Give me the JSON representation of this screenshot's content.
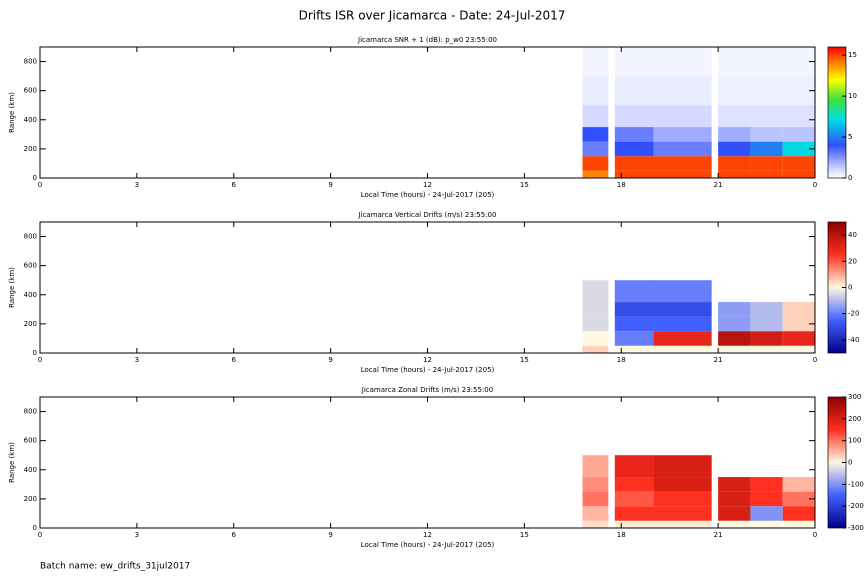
{
  "title": "Drifts ISR over Jicamarca - Date: 24-Jul-2017",
  "footer": "Batch name: ew_drifts_31jul2017",
  "chart_data": [
    {
      "type": "heatmap",
      "title": "Jicamarca SNR + 1 (dB): p_w0 23:55:00",
      "xlabel": "Local Time (hours) - 24-Jul-2017 (205)",
      "ylabel": "Range (km)",
      "xlim": [
        0,
        24
      ],
      "xticks": [
        0,
        3,
        6,
        9,
        12,
        15,
        18,
        21,
        {
          "value": 24,
          "label": "0"
        }
      ],
      "ylim": [
        0,
        900
      ],
      "yticks": [
        0,
        200,
        400,
        600,
        800
      ],
      "colorscale": "rainbow",
      "clim": [
        0,
        16
      ],
      "cticks": [
        0,
        5,
        10,
        15
      ],
      "x": [
        16.8,
        17.6,
        17.8,
        19,
        20.8,
        21.0,
        22,
        23,
        24
      ],
      "y": [
        0,
        50,
        150,
        250,
        350,
        500,
        700,
        900
      ],
      "z": [
        [
          14,
          null,
          15,
          15,
          null,
          15,
          15,
          15
        ],
        [
          15,
          null,
          15,
          15,
          null,
          15,
          15,
          15
        ],
        [
          3,
          null,
          4,
          3,
          null,
          4,
          5,
          7
        ],
        [
          4,
          null,
          3,
          2,
          null,
          2,
          1.5,
          1.5
        ],
        [
          1,
          null,
          1,
          1,
          null,
          0.8,
          0.8,
          0.8
        ],
        [
          0.5,
          null,
          0.5,
          0.5,
          null,
          0.4,
          0.4,
          0.4
        ],
        [
          0.3,
          null,
          0.3,
          0.3,
          null,
          0.3,
          0.3,
          0.3
        ]
      ]
    },
    {
      "type": "heatmap",
      "title": "Jicamarca Vertical Drifts (m/s) 23:55:00",
      "xlabel": "Local Time (hours) - 24-Jul-2017 (205)",
      "ylabel": "Range (km)",
      "xlim": [
        0,
        24
      ],
      "xticks": [
        0,
        3,
        6,
        9,
        12,
        15,
        18,
        21,
        {
          "value": 24,
          "label": "0"
        }
      ],
      "ylim": [
        0,
        900
      ],
      "yticks": [
        0,
        200,
        400,
        600,
        800
      ],
      "colorscale": "bwr",
      "clim": [
        -50,
        50
      ],
      "cticks": [
        -40,
        -20,
        0,
        20,
        40
      ],
      "x": [
        16.8,
        17.6,
        17.8,
        19,
        20.8,
        21.0,
        22,
        23,
        24
      ],
      "y": [
        0,
        50,
        150,
        250,
        350,
        500,
        700,
        900
      ],
      "z": [
        [
          5,
          null,
          0,
          0,
          null,
          0,
          0,
          0
        ],
        [
          0,
          null,
          -20,
          30,
          null,
          40,
          35,
          30
        ],
        [
          -5,
          null,
          -25,
          -25,
          null,
          -15,
          -10,
          5
        ],
        [
          -5,
          null,
          -30,
          -30,
          null,
          -15,
          -10,
          5
        ],
        [
          -5,
          null,
          -20,
          -20,
          null,
          null,
          null,
          null
        ],
        [
          null,
          null,
          null,
          null,
          null,
          null,
          null,
          null
        ],
        [
          null,
          null,
          null,
          null,
          null,
          null,
          null,
          null
        ]
      ]
    },
    {
      "type": "heatmap",
      "title": "Jicamarca Zonal Drifts (m/s) 23:55:00",
      "xlabel": "Local Time (hours) - 24-Jul-2017 (205)",
      "ylabel": "Range (km)",
      "xlim": [
        0,
        24
      ],
      "xticks": [
        0,
        3,
        6,
        9,
        12,
        15,
        18,
        21,
        {
          "value": 24,
          "label": "0"
        }
      ],
      "ylim": [
        0,
        900
      ],
      "yticks": [
        0,
        200,
        400,
        600,
        800
      ],
      "colorscale": "bwr",
      "clim": [
        -300,
        300
      ],
      "cticks": [
        -300,
        -200,
        -100,
        0,
        100,
        200,
        300
      ],
      "x": [
        16.8,
        17.6,
        17.8,
        19,
        20.8,
        21.0,
        22,
        23,
        24
      ],
      "y": [
        0,
        50,
        150,
        250,
        350,
        500,
        700,
        900
      ],
      "z": [
        [
          20,
          null,
          10,
          10,
          null,
          0,
          0,
          0
        ],
        [
          50,
          null,
          150,
          150,
          null,
          200,
          -100,
          150
        ],
        [
          100,
          null,
          120,
          150,
          null,
          200,
          150,
          100
        ],
        [
          80,
          null,
          150,
          200,
          null,
          200,
          150,
          50
        ],
        [
          60,
          null,
          180,
          200,
          null,
          null,
          null,
          null
        ],
        [
          null,
          null,
          null,
          null,
          null,
          null,
          null,
          null
        ],
        [
          null,
          null,
          null,
          null,
          null,
          null,
          null,
          null
        ]
      ]
    }
  ]
}
